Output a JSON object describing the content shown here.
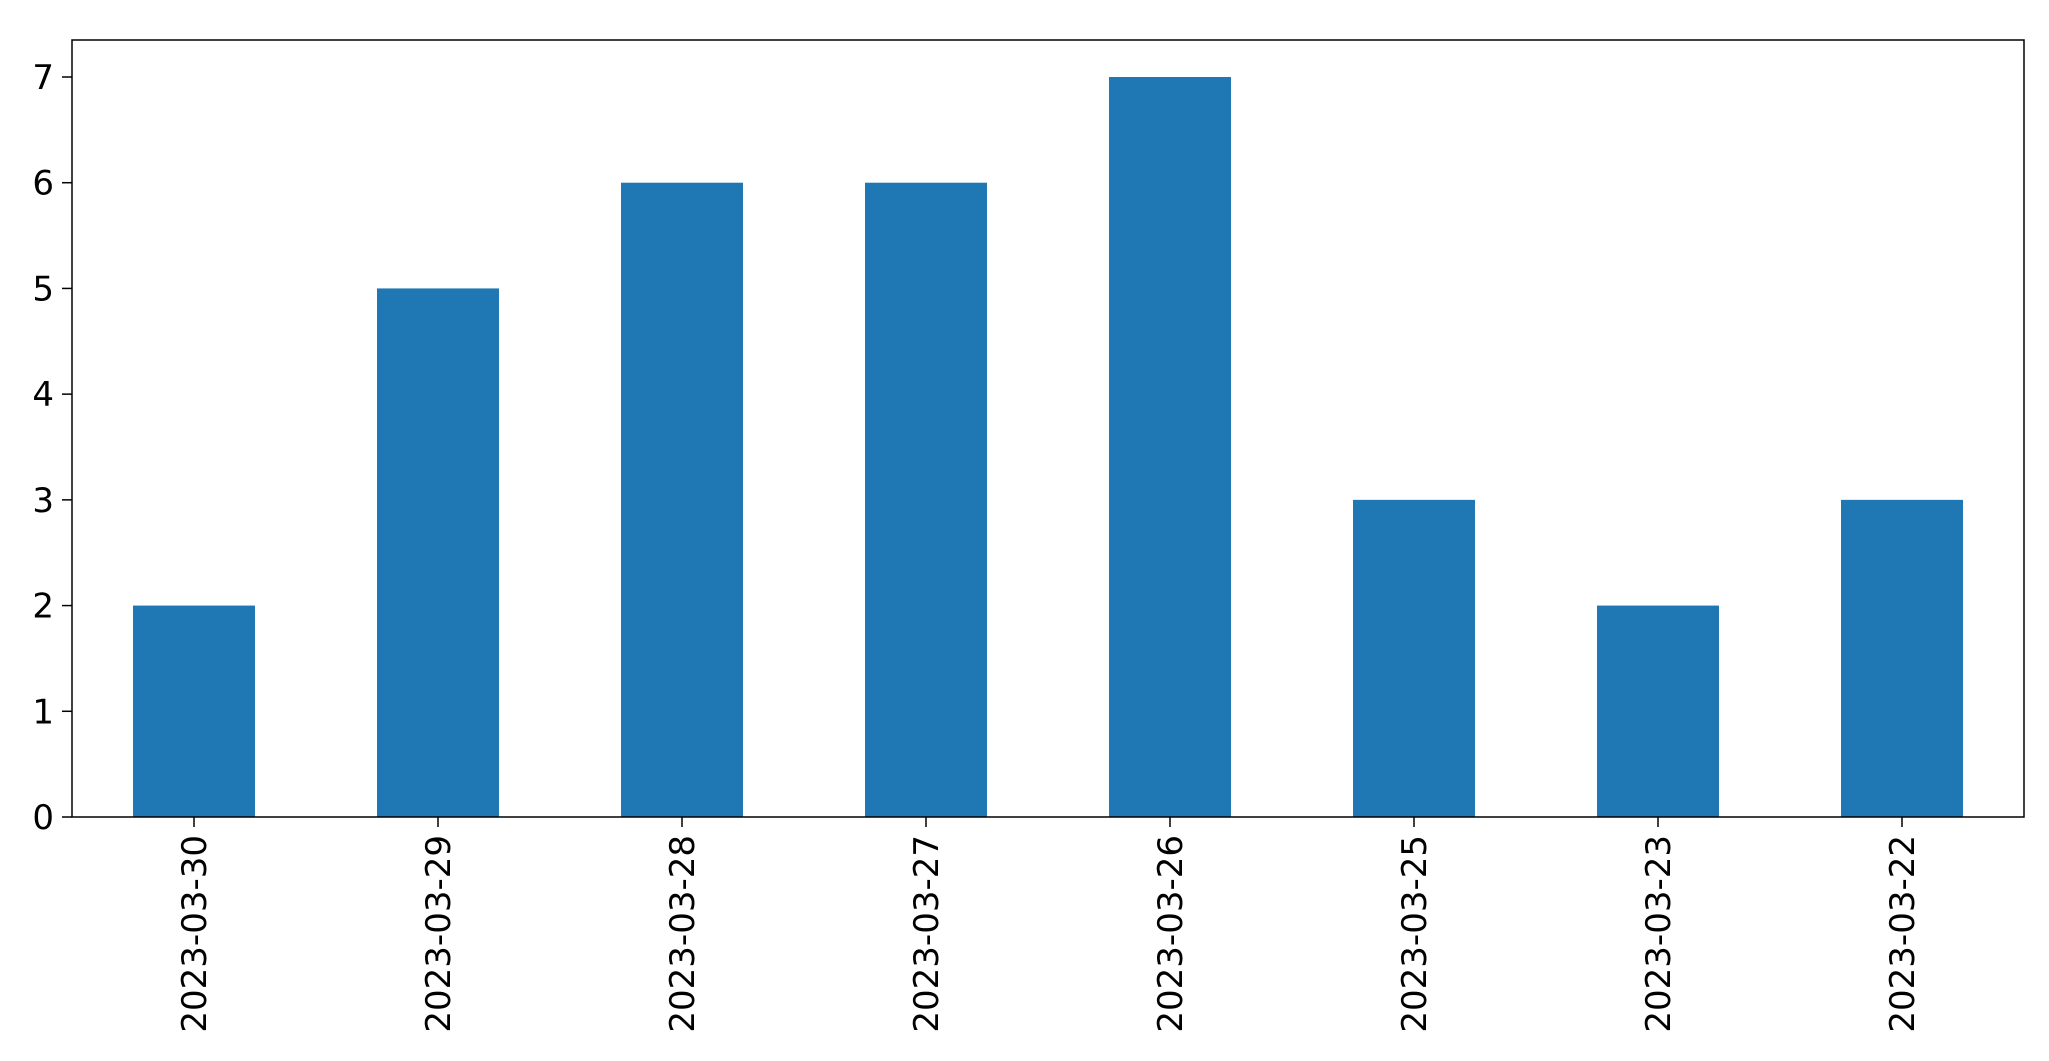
{
  "chart_data": {
    "type": "bar",
    "categories": [
      "2023-03-30",
      "2023-03-29",
      "2023-03-28",
      "2023-03-27",
      "2023-03-26",
      "2023-03-25",
      "2023-03-23",
      "2023-03-22"
    ],
    "values": [
      2,
      5,
      6,
      6,
      7,
      3,
      2,
      3
    ],
    "title": "",
    "xlabel": "",
    "ylabel": "",
    "ylim": [
      0,
      7.35
    ],
    "yticks": [
      0,
      1,
      2,
      3,
      4,
      5,
      6,
      7
    ],
    "grid": false,
    "legend": "none",
    "bar_color": "#1f77b4"
  }
}
